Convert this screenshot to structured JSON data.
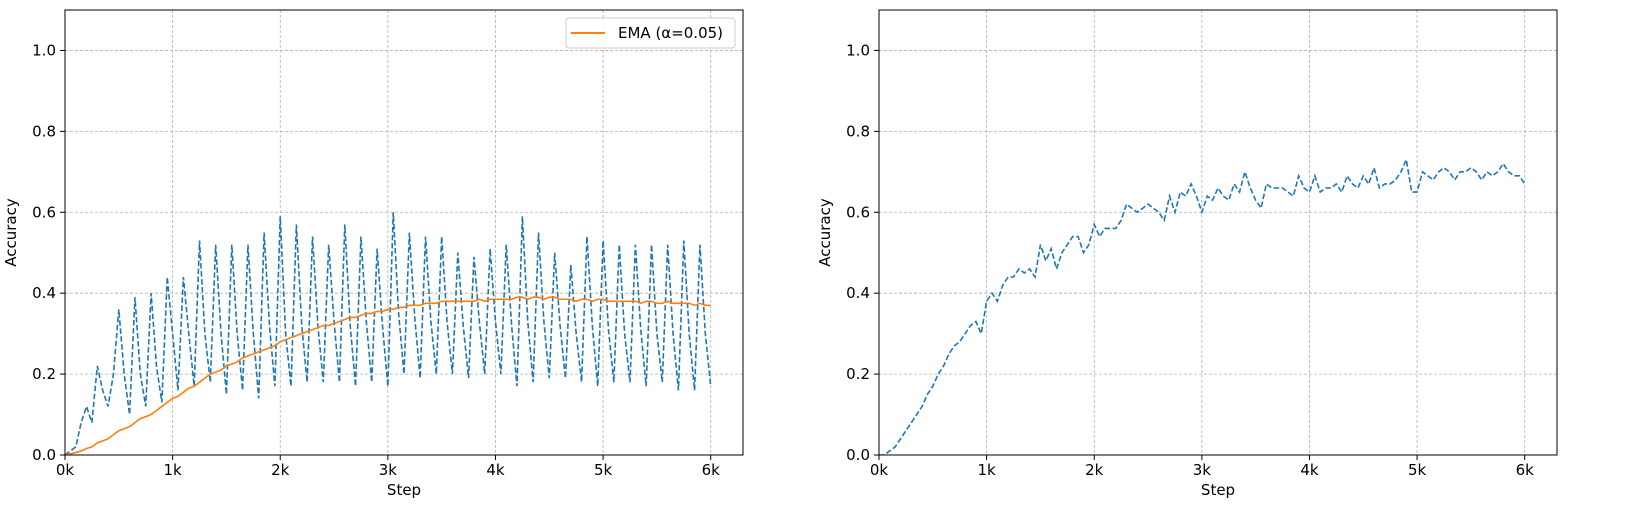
{
  "chart_data": [
    {
      "type": "line",
      "xlabel": "Step",
      "ylabel": "Accuracy",
      "x": [
        0,
        50,
        100,
        150,
        200,
        250,
        300,
        350,
        400,
        450,
        500,
        550,
        600,
        650,
        700,
        750,
        800,
        850,
        900,
        950,
        1000,
        1050,
        1100,
        1150,
        1200,
        1250,
        1300,
        1350,
        1400,
        1450,
        1500,
        1550,
        1600,
        1650,
        1700,
        1750,
        1800,
        1850,
        1900,
        1950,
        2000,
        2050,
        2100,
        2150,
        2200,
        2250,
        2300,
        2350,
        2400,
        2450,
        2500,
        2550,
        2600,
        2650,
        2700,
        2750,
        2800,
        2850,
        2900,
        2950,
        3000,
        3050,
        3100,
        3150,
        3200,
        3250,
        3300,
        3350,
        3400,
        3450,
        3500,
        3550,
        3600,
        3650,
        3700,
        3750,
        3800,
        3850,
        3900,
        3950,
        4000,
        4050,
        4100,
        4150,
        4200,
        4250,
        4300,
        4350,
        4400,
        4450,
        4500,
        4550,
        4600,
        4650,
        4700,
        4750,
        4800,
        4850,
        4900,
        4950,
        5000,
        5050,
        5100,
        5150,
        5200,
        5250,
        5300,
        5350,
        5400,
        5450,
        5500,
        5550,
        5600,
        5650,
        5700,
        5750,
        5800,
        5850,
        5900,
        5950,
        6000
      ],
      "series": [
        {
          "color": "#1f77b4",
          "linestyle": "dashed",
          "values": [
            0.0,
            0.01,
            0.02,
            0.08,
            0.12,
            0.08,
            0.22,
            0.16,
            0.12,
            0.2,
            0.36,
            0.2,
            0.1,
            0.39,
            0.2,
            0.12,
            0.4,
            0.22,
            0.13,
            0.44,
            0.3,
            0.16,
            0.44,
            0.3,
            0.17,
            0.53,
            0.3,
            0.18,
            0.52,
            0.3,
            0.15,
            0.52,
            0.3,
            0.16,
            0.52,
            0.3,
            0.14,
            0.55,
            0.32,
            0.17,
            0.59,
            0.3,
            0.17,
            0.57,
            0.32,
            0.18,
            0.54,
            0.32,
            0.18,
            0.52,
            0.33,
            0.18,
            0.57,
            0.32,
            0.17,
            0.54,
            0.33,
            0.18,
            0.51,
            0.32,
            0.17,
            0.6,
            0.35,
            0.2,
            0.55,
            0.34,
            0.19,
            0.54,
            0.33,
            0.2,
            0.54,
            0.33,
            0.2,
            0.5,
            0.32,
            0.19,
            0.49,
            0.33,
            0.2,
            0.51,
            0.33,
            0.2,
            0.52,
            0.32,
            0.17,
            0.59,
            0.33,
            0.18,
            0.55,
            0.33,
            0.19,
            0.5,
            0.32,
            0.19,
            0.47,
            0.3,
            0.18,
            0.54,
            0.32,
            0.17,
            0.53,
            0.31,
            0.18,
            0.52,
            0.3,
            0.18,
            0.52,
            0.31,
            0.17,
            0.52,
            0.3,
            0.18,
            0.52,
            0.3,
            0.16,
            0.53,
            0.3,
            0.16,
            0.52,
            0.3,
            0.17
          ]
        },
        {
          "name": "EMA (α=0.05)",
          "color": "#ff7f0e",
          "linestyle": "solid",
          "values": [
            0,
            0.003,
            0.006,
            0.01,
            0.016,
            0.02,
            0.03,
            0.035,
            0.04,
            0.05,
            0.06,
            0.065,
            0.07,
            0.08,
            0.09,
            0.095,
            0.1,
            0.11,
            0.12,
            0.13,
            0.14,
            0.145,
            0.155,
            0.165,
            0.17,
            0.18,
            0.19,
            0.2,
            0.205,
            0.21,
            0.22,
            0.225,
            0.23,
            0.24,
            0.245,
            0.25,
            0.255,
            0.26,
            0.265,
            0.27,
            0.28,
            0.285,
            0.29,
            0.295,
            0.3,
            0.305,
            0.31,
            0.315,
            0.32,
            0.32,
            0.325,
            0.33,
            0.335,
            0.34,
            0.34,
            0.345,
            0.35,
            0.35,
            0.355,
            0.355,
            0.36,
            0.36,
            0.365,
            0.365,
            0.37,
            0.37,
            0.37,
            0.375,
            0.375,
            0.375,
            0.38,
            0.38,
            0.38,
            0.38,
            0.38,
            0.38,
            0.38,
            0.385,
            0.38,
            0.385,
            0.385,
            0.385,
            0.385,
            0.385,
            0.39,
            0.39,
            0.385,
            0.39,
            0.39,
            0.385,
            0.39,
            0.39,
            0.385,
            0.385,
            0.385,
            0.38,
            0.385,
            0.385,
            0.38,
            0.385,
            0.385,
            0.38,
            0.38,
            0.38,
            0.38,
            0.38,
            0.38,
            0.375,
            0.38,
            0.38,
            0.375,
            0.375,
            0.38,
            0.375,
            0.375,
            0.375,
            0.375,
            0.37,
            0.375,
            0.37,
            0.37
          ]
        }
      ],
      "xlim": [
        0,
        6300
      ],
      "xticks": [
        {
          "value": 0,
          "label": "0k"
        },
        {
          "value": 1000,
          "label": "1k"
        },
        {
          "value": 2000,
          "label": "2k"
        },
        {
          "value": 3000,
          "label": "3k"
        },
        {
          "value": 4000,
          "label": "4k"
        },
        {
          "value": 5000,
          "label": "5k"
        },
        {
          "value": 6000,
          "label": "6k"
        }
      ],
      "ylim": [
        0,
        1.1
      ],
      "yticks": [
        {
          "value": 0,
          "label": "0.0"
        },
        0.2,
        0.4,
        0.6,
        0.8,
        {
          "value": 1,
          "label": "1.0"
        }
      ],
      "grid": true,
      "legend": "upper right"
    },
    {
      "type": "line",
      "xlabel": "Step",
      "ylabel": "Accuracy",
      "x": [
        0,
        50,
        100,
        150,
        200,
        250,
        300,
        350,
        400,
        450,
        500,
        550,
        600,
        650,
        700,
        750,
        800,
        850,
        900,
        950,
        1000,
        1050,
        1100,
        1150,
        1200,
        1250,
        1300,
        1350,
        1400,
        1450,
        1500,
        1550,
        1600,
        1650,
        1700,
        1750,
        1800,
        1850,
        1900,
        1950,
        2000,
        2050,
        2100,
        2150,
        2200,
        2250,
        2300,
        2350,
        2400,
        2450,
        2500,
        2550,
        2600,
        2650,
        2700,
        2750,
        2800,
        2850,
        2900,
        2950,
        3000,
        3050,
        3100,
        3150,
        3200,
        3250,
        3300,
        3350,
        3400,
        3450,
        3500,
        3550,
        3600,
        3650,
        3700,
        3750,
        3800,
        3850,
        3900,
        3950,
        4000,
        4050,
        4100,
        4150,
        4200,
        4250,
        4300,
        4350,
        4400,
        4450,
        4500,
        4550,
        4600,
        4650,
        4700,
        4750,
        4800,
        4850,
        4900,
        4950,
        5000,
        5050,
        5100,
        5150,
        5200,
        5250,
        5300,
        5350,
        5400,
        5450,
        5500,
        5550,
        5600,
        5650,
        5700,
        5750,
        5800,
        5850,
        5900,
        5950,
        6000
      ],
      "series": [
        {
          "color": "#1f77b4",
          "linestyle": "dashed",
          "values": [
            0,
            0.0,
            0.01,
            0.02,
            0.04,
            0.06,
            0.08,
            0.1,
            0.12,
            0.15,
            0.17,
            0.2,
            0.22,
            0.25,
            0.27,
            0.28,
            0.3,
            0.32,
            0.33,
            0.3,
            0.38,
            0.4,
            0.38,
            0.42,
            0.44,
            0.44,
            0.46,
            0.45,
            0.46,
            0.44,
            0.52,
            0.48,
            0.51,
            0.46,
            0.5,
            0.52,
            0.54,
            0.54,
            0.5,
            0.52,
            0.57,
            0.54,
            0.56,
            0.56,
            0.56,
            0.58,
            0.62,
            0.61,
            0.6,
            0.61,
            0.62,
            0.61,
            0.6,
            0.58,
            0.64,
            0.6,
            0.65,
            0.64,
            0.67,
            0.64,
            0.6,
            0.64,
            0.63,
            0.66,
            0.64,
            0.63,
            0.67,
            0.65,
            0.7,
            0.66,
            0.63,
            0.61,
            0.67,
            0.66,
            0.66,
            0.66,
            0.65,
            0.64,
            0.69,
            0.66,
            0.65,
            0.69,
            0.65,
            0.66,
            0.66,
            0.67,
            0.65,
            0.69,
            0.67,
            0.66,
            0.69,
            0.67,
            0.71,
            0.66,
            0.67,
            0.67,
            0.68,
            0.7,
            0.73,
            0.65,
            0.65,
            0.7,
            0.69,
            0.68,
            0.7,
            0.71,
            0.7,
            0.68,
            0.7,
            0.7,
            0.71,
            0.7,
            0.68,
            0.7,
            0.69,
            0.7,
            0.72,
            0.7,
            0.69,
            0.69,
            0.67
          ]
        }
      ],
      "xlim": [
        0,
        6300
      ],
      "xticks": [
        {
          "value": 0,
          "label": "0k"
        },
        {
          "value": 1000,
          "label": "1k"
        },
        {
          "value": 2000,
          "label": "2k"
        },
        {
          "value": 3000,
          "label": "3k"
        },
        {
          "value": 4000,
          "label": "4k"
        },
        {
          "value": 5000,
          "label": "5k"
        },
        {
          "value": 6000,
          "label": "6k"
        }
      ],
      "ylim": [
        0,
        1.1
      ],
      "yticks": [
        {
          "value": 0,
          "label": "0.0"
        },
        0.2,
        0.4,
        0.6,
        0.8,
        {
          "value": 1,
          "label": "1.0"
        }
      ],
      "grid": true
    }
  ]
}
